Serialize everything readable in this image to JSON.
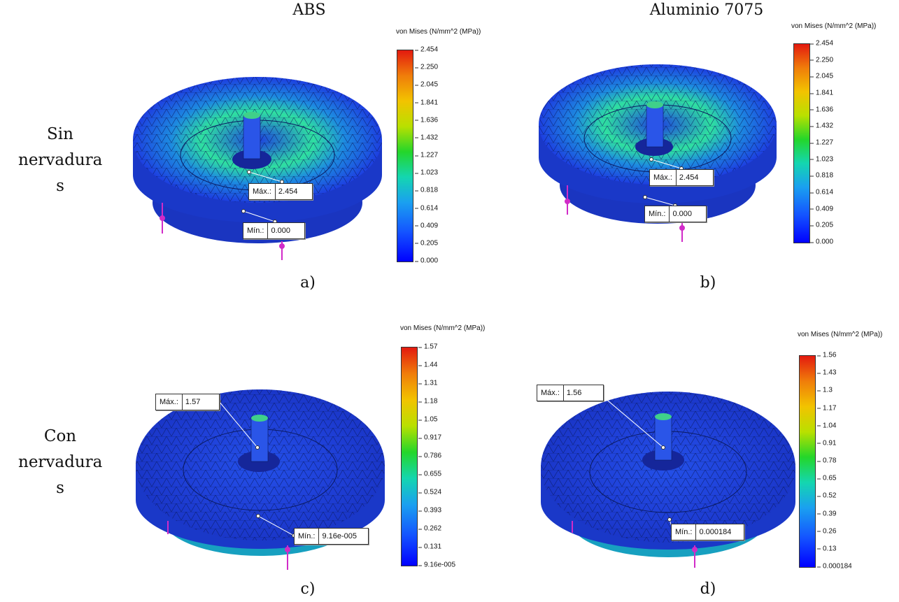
{
  "columns": {
    "abs": "ABS",
    "aluminio": "Aluminio 7075"
  },
  "rows": {
    "sin": [
      "Sin",
      "nervadura",
      "s"
    ],
    "con": [
      "Con",
      "nervadura",
      "s"
    ]
  },
  "panels": [
    {
      "label": "a)",
      "legend_title": "von Mises (N/mm^2 (MPa))",
      "ticks": [
        "2.454",
        "2.250",
        "2.045",
        "1.841",
        "1.636",
        "1.432",
        "1.227",
        "1.023",
        "0.818",
        "0.614",
        "0.409",
        "0.205",
        "0.000"
      ],
      "max_key": "Máx.:",
      "max_val": "2.454",
      "min_key": "Mín.:",
      "min_val": "0.000"
    },
    {
      "label": "b)",
      "legend_title": "von Mises (N/mm^2 (MPa))",
      "ticks": [
        "2.454",
        "2.250",
        "2.045",
        "1.841",
        "1.636",
        "1.432",
        "1.227",
        "1.023",
        "0.818",
        "0.614",
        "0.409",
        "0.205",
        "0.000"
      ],
      "max_key": "Máx.:",
      "max_val": "2.454",
      "min_key": "Mín.:",
      "min_val": "0.000"
    },
    {
      "label": "c)",
      "legend_title": "von Mises (N/mm^2 (MPa))",
      "ticks": [
        "1.57",
        "1.44",
        "1.31",
        "1.18",
        "1.05",
        "0.917",
        "0.786",
        "0.655",
        "0.524",
        "0.393",
        "0.262",
        "0.131",
        "9.16e-005"
      ],
      "max_key": "Máx.:",
      "max_val": "1.57",
      "min_key": "Mín.:",
      "min_val": "9.16e-005"
    },
    {
      "label": "d)",
      "legend_title": "von Mises (N/mm^2 (MPa))",
      "ticks": [
        "1.56",
        "1.43",
        "1.3",
        "1.17",
        "1.04",
        "0.91",
        "0.78",
        "0.65",
        "0.52",
        "0.39",
        "0.26",
        "0.13",
        "0.000184"
      ],
      "max_key": "Máx.:",
      "max_val": "1.56",
      "min_key": "Mín.:",
      "min_val": "0.000184"
    }
  ],
  "colors": {
    "mesh_blue": "#1d3fe0",
    "load_arrow": "#d12bc8",
    "stress_green": "#2fe0a0"
  }
}
